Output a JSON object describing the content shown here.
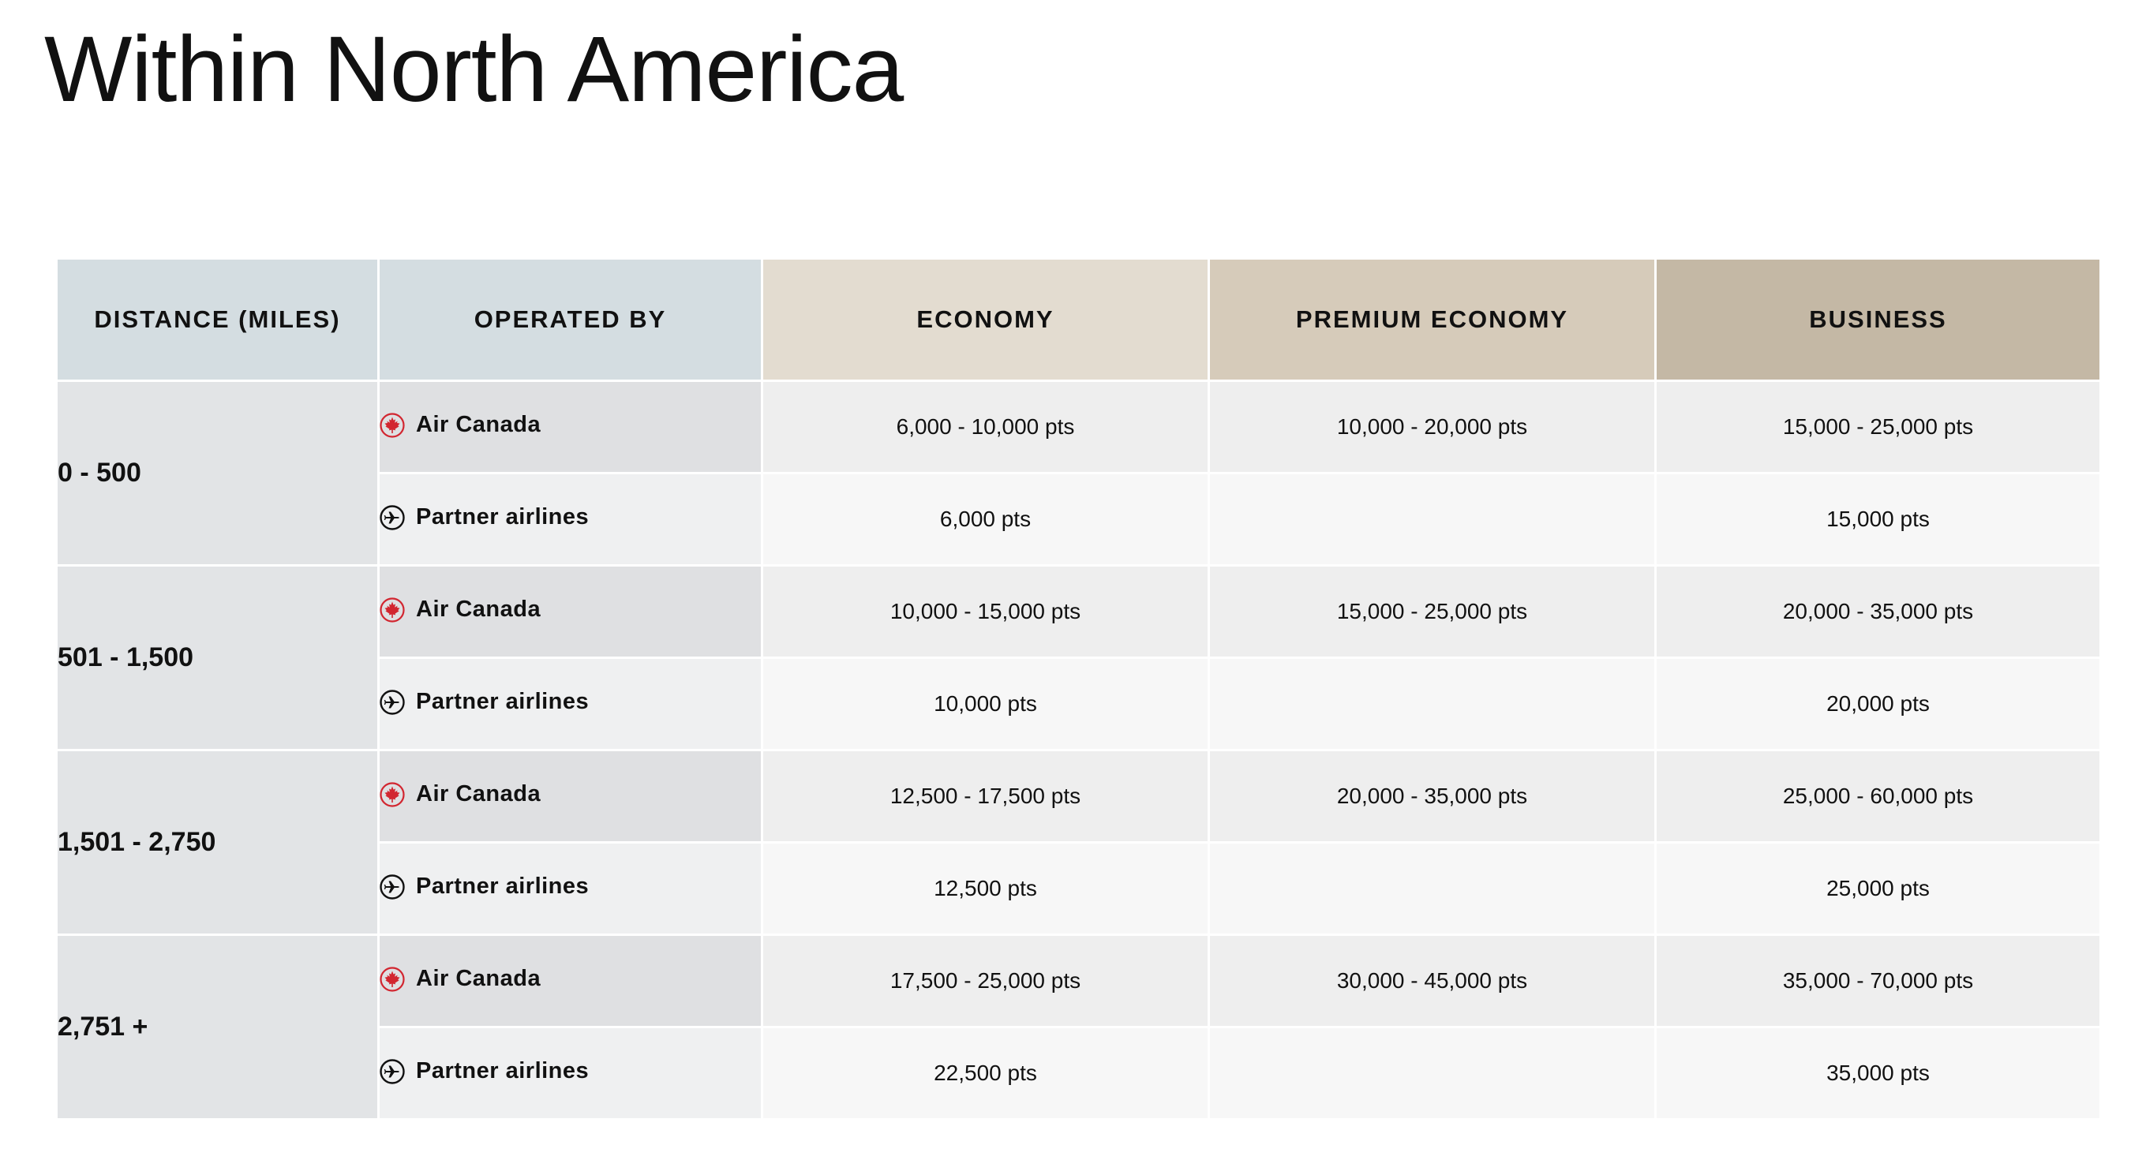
{
  "page": {
    "title": "Within North America"
  },
  "colors": {
    "air_canada_red": "#d22630",
    "header_distance": "#d4dde1",
    "header_economy": "#e3dcd0",
    "header_premium": "#d6cbba",
    "header_business": "#c4b8a5"
  },
  "table": {
    "headers": {
      "distance": "DISTANCE (MILES)",
      "operated_by": "OPERATED BY",
      "economy": "ECONOMY",
      "premium_economy": "PREMIUM ECONOMY",
      "business": "BUSINESS"
    },
    "operators": {
      "air_canada": {
        "label": "Air Canada",
        "icon": "maple-leaf-icon"
      },
      "partner": {
        "label": "Partner airlines",
        "icon": "airplane-circle-icon"
      }
    },
    "groups": [
      {
        "distance": "0 - 500",
        "air_canada": {
          "economy": "6,000 - 10,000 pts",
          "premium_economy": "10,000 - 20,000 pts",
          "business": "15,000 - 25,000 pts"
        },
        "partner": {
          "economy": "6,000 pts",
          "premium_economy": "",
          "business": "15,000 pts"
        }
      },
      {
        "distance": "501 - 1,500",
        "air_canada": {
          "economy": "10,000 - 15,000 pts",
          "premium_economy": "15,000 - 25,000 pts",
          "business": "20,000 - 35,000 pts"
        },
        "partner": {
          "economy": "10,000 pts",
          "premium_economy": "",
          "business": "20,000 pts"
        }
      },
      {
        "distance": "1,501 - 2,750",
        "air_canada": {
          "economy": "12,500 - 17,500 pts",
          "premium_economy": "20,000 - 35,000 pts",
          "business": "25,000 - 60,000 pts"
        },
        "partner": {
          "economy": "12,500 pts",
          "premium_economy": "",
          "business": "25,000 pts"
        }
      },
      {
        "distance": "2,751 +",
        "air_canada": {
          "economy": "17,500 - 25,000 pts",
          "premium_economy": "30,000 - 45,000 pts",
          "business": "35,000 - 70,000 pts"
        },
        "partner": {
          "economy": "22,500 pts",
          "premium_economy": "",
          "business": "35,000 pts"
        }
      }
    ]
  }
}
